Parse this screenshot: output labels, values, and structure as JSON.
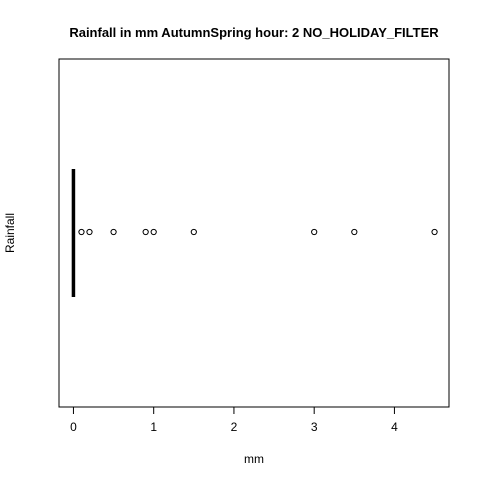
{
  "chart_data": {
    "type": "boxplot",
    "orientation": "horizontal",
    "title": "Rainfall in mm AutumnSpring hour: 2 NO_HOLIDAY_FILTER",
    "xlabel": "mm",
    "ylabel": "Rainfall",
    "xlim": [
      -0.18,
      4.68
    ],
    "x_ticks": [
      0,
      1,
      2,
      3,
      4
    ],
    "box": {
      "min": 0,
      "q1": 0,
      "median": 0,
      "q3": 0,
      "max": 0
    },
    "outliers": [
      0.1,
      0.2,
      0.5,
      0.9,
      1.0,
      1.5,
      3.0,
      3.5,
      4.5
    ],
    "grid": false,
    "legend": "none"
  }
}
